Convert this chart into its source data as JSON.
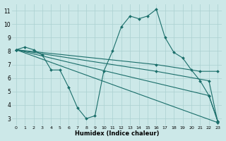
{
  "xlabel": "Humidex (Indice chaleur)",
  "background_color": "#cce8e8",
  "grid_color": "#aad0d0",
  "line_color": "#1a6e6a",
  "xlim": [
    -0.5,
    23.5
  ],
  "ylim": [
    2.5,
    11.5
  ],
  "xticks": [
    0,
    1,
    2,
    3,
    4,
    5,
    6,
    7,
    8,
    9,
    10,
    11,
    12,
    13,
    14,
    15,
    16,
    17,
    18,
    19,
    20,
    21,
    22,
    23
  ],
  "yticks": [
    3,
    4,
    5,
    6,
    7,
    8,
    9,
    10,
    11
  ],
  "lines": [
    {
      "x": [
        0,
        1,
        2,
        3,
        4,
        5,
        6,
        7,
        8,
        9,
        10,
        11,
        12,
        13,
        14,
        15,
        16,
        17,
        18,
        19,
        20,
        21,
        22,
        23
      ],
      "y": [
        8.1,
        8.3,
        8.1,
        7.7,
        6.6,
        6.6,
        5.3,
        3.8,
        3.0,
        3.2,
        6.5,
        8.0,
        9.8,
        10.6,
        10.4,
        10.6,
        11.1,
        9.0,
        7.9,
        7.5,
        6.6,
        5.8,
        4.7,
        2.8
      ]
    },
    {
      "x": [
        0,
        23
      ],
      "y": [
        8.1,
        2.7
      ]
    },
    {
      "x": [
        0,
        22,
        23
      ],
      "y": [
        8.1,
        4.7,
        2.8
      ]
    },
    {
      "x": [
        0,
        16,
        22,
        23
      ],
      "y": [
        8.1,
        6.5,
        5.8,
        2.75
      ]
    },
    {
      "x": [
        0,
        16,
        21,
        23
      ],
      "y": [
        8.1,
        7.0,
        6.5,
        6.5
      ]
    }
  ]
}
